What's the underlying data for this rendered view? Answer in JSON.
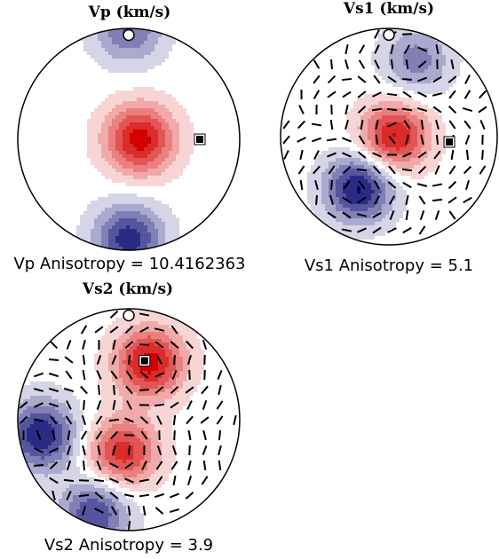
{
  "chart_data": [
    {
      "type": "pole figure",
      "title": "Vp (km/s)",
      "footer": "Vp Anisotropy = 10.4162363",
      "ticks": false,
      "colormap": {
        "low": "#00006e",
        "mid": "#ffffff",
        "high": "#d40000"
      },
      "max_marker": {
        "shape": "black square",
        "r": 0.64,
        "az_deg": 90
      },
      "min_marker": {
        "shape": "white circle",
        "r": 1.0,
        "az_deg": 0
      },
      "levels": [
        {
          "r": 0.1,
          "az_deg": 90,
          "level": 1.0
        },
        {
          "r": 0.9,
          "az_deg": 180,
          "level": -0.85
        },
        {
          "r": 1.0,
          "az_deg": 0,
          "level": -0.6
        }
      ]
    },
    {
      "type": "pole figure",
      "title": "Vs1 (km/s)",
      "footer": "Vs1 Anisotropy = 5.1",
      "ticks": true,
      "colormap": {
        "low": "#00006e",
        "mid": "#ffffff",
        "high": "#d40000"
      },
      "max_marker": {
        "shape": "black square",
        "r": 0.56,
        "az_deg": 95
      },
      "min_marker": {
        "shape": "white circle",
        "r": 1.0,
        "az_deg": 0
      },
      "levels": [
        {
          "r": 0.05,
          "az_deg": 90,
          "level": 0.95
        },
        {
          "r": 0.55,
          "az_deg": 210,
          "level": -0.95
        },
        {
          "r": 0.75,
          "az_deg": 20,
          "level": -0.5
        }
      ]
    },
    {
      "type": "pole figure",
      "title": "Vs2 (km/s)",
      "footer": "Vs2 Anisotropy = 3.9",
      "ticks": true,
      "colormap": {
        "low": "#00006e",
        "mid": "#ffffff",
        "high": "#d40000"
      },
      "max_marker": {
        "shape": "black square",
        "r": 0.55,
        "az_deg": 15
      },
      "min_marker": {
        "shape": "white circle",
        "r": 1.0,
        "az_deg": 0
      },
      "levels": [
        {
          "r": 0.55,
          "az_deg": 20,
          "level": 1.0
        },
        {
          "r": 0.3,
          "az_deg": 190,
          "level": 0.85
        },
        {
          "r": 0.8,
          "az_deg": 260,
          "level": -0.9
        },
        {
          "r": 0.9,
          "az_deg": 200,
          "level": -0.75
        }
      ]
    }
  ]
}
